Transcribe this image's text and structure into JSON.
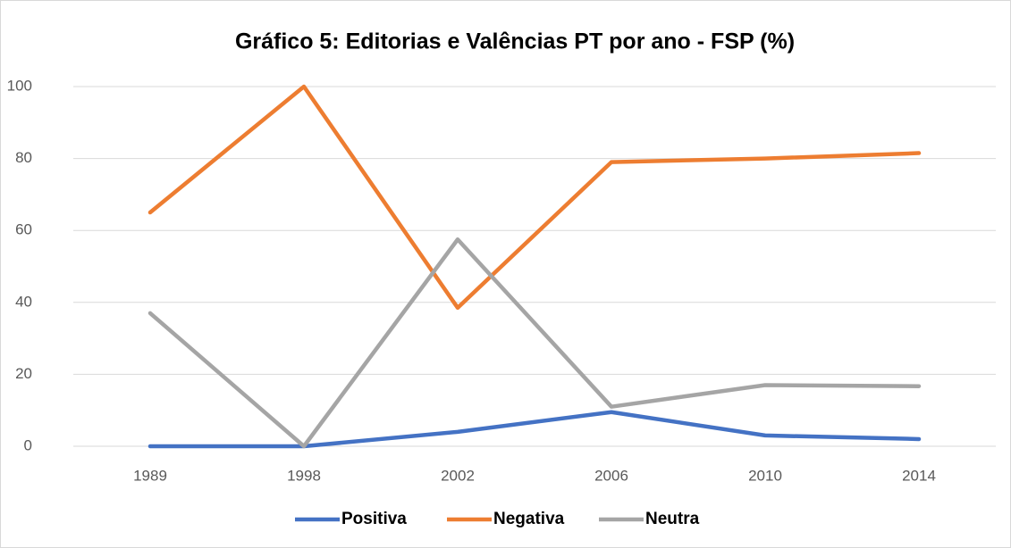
{
  "chart_data": {
    "type": "line",
    "title": "Gráfico 5: Editorias e Valências PT por ano - FSP (%)",
    "categories": [
      "1989",
      "1998",
      "2002",
      "2006",
      "2010",
      "2014"
    ],
    "series": [
      {
        "name": "Positiva",
        "color": "#4472c4",
        "values": [
          0,
          0,
          4,
          9.5,
          3,
          2
        ]
      },
      {
        "name": "Negativa",
        "color": "#ed7d31",
        "values": [
          65,
          100,
          38.5,
          79,
          80,
          81.5
        ]
      },
      {
        "name": "Neutra",
        "color": "#a5a5a5",
        "values": [
          37,
          0,
          57.5,
          11,
          17,
          16.7
        ]
      }
    ],
    "ylim": [
      0,
      100
    ],
    "yticks": [
      0,
      20,
      40,
      60,
      80,
      100
    ],
    "grid": true,
    "legend": "bottom"
  }
}
